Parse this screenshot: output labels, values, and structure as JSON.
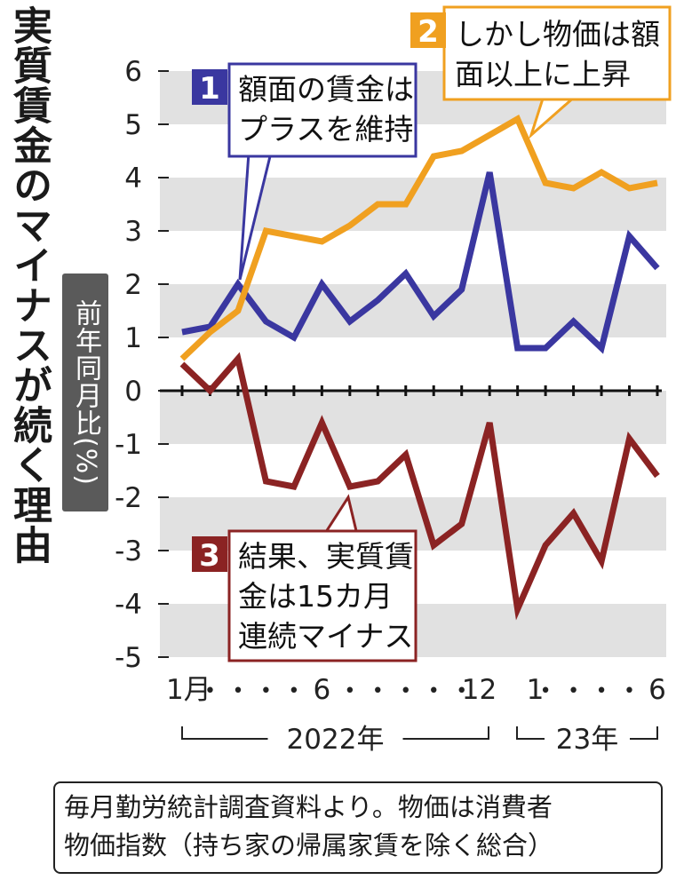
{
  "title": "実質賃金のマイナスが続く理由",
  "ylabel": "前年同月比(%)",
  "footnote": {
    "line1": "毎月勤労統計調査資料より。物価は消費者",
    "line2": "物価指数（持ち家の帰属家賃を除く総合）"
  },
  "callouts": [
    {
      "num": "1",
      "line1": "額面の賃金は",
      "line2": "プラスを維持",
      "color": "#3a37a0"
    },
    {
      "num": "2",
      "line1": "しかし物価は額",
      "line2": "面以上に上昇",
      "color": "#f0a020"
    },
    {
      "num": "3",
      "line1": "結果、実質賃",
      "line2": "金は15カ月",
      "line3": "連続マイナス",
      "color": "#8b2323"
    }
  ],
  "x_tick_labels": [
    "1月",
    "•",
    "•",
    "•",
    "•",
    "6",
    "•",
    "•",
    "•",
    "•",
    "•",
    "12",
    "1",
    "•",
    "•",
    "•",
    "•",
    "6"
  ],
  "year_labels": [
    "2022年",
    "23年"
  ],
  "chart_data": {
    "type": "line",
    "xlabel": "",
    "ylabel": "前年同月比(%)",
    "ylim": [
      -5,
      6
    ],
    "yticks": [
      "6",
      "5",
      "4",
      "3",
      "2",
      "1",
      "0",
      "-1",
      "-2",
      "-3",
      "-4",
      "-5"
    ],
    "x": [
      "2022-01",
      "2022-02",
      "2022-03",
      "2022-04",
      "2022-05",
      "2022-06",
      "2022-07",
      "2022-08",
      "2022-09",
      "2022-10",
      "2022-11",
      "2022-12",
      "2023-01",
      "2023-02",
      "2023-03",
      "2023-04",
      "2023-05",
      "2023-06"
    ],
    "series": [
      {
        "key": "wage",
        "color": "#3a37a0",
        "values": [
          1.1,
          1.2,
          2.0,
          1.3,
          1.0,
          2.0,
          1.3,
          1.7,
          2.2,
          1.4,
          1.9,
          4.1,
          0.8,
          0.8,
          1.3,
          0.8,
          2.9,
          2.3
        ]
      },
      {
        "key": "prices",
        "color": "#f0a020",
        "values": [
          0.6,
          1.1,
          1.5,
          3.0,
          2.9,
          2.8,
          3.1,
          3.5,
          3.5,
          4.4,
          4.5,
          4.8,
          5.1,
          3.9,
          3.8,
          4.1,
          3.8,
          3.9
        ]
      },
      {
        "key": "real_wage",
        "color": "#8b2323",
        "values": [
          0.5,
          0.0,
          0.6,
          -1.7,
          -1.8,
          -0.6,
          -1.8,
          -1.7,
          -1.2,
          -2.9,
          -2.5,
          -0.6,
          -4.1,
          -2.9,
          -2.3,
          -3.2,
          -0.9,
          -1.6
        ]
      }
    ]
  }
}
